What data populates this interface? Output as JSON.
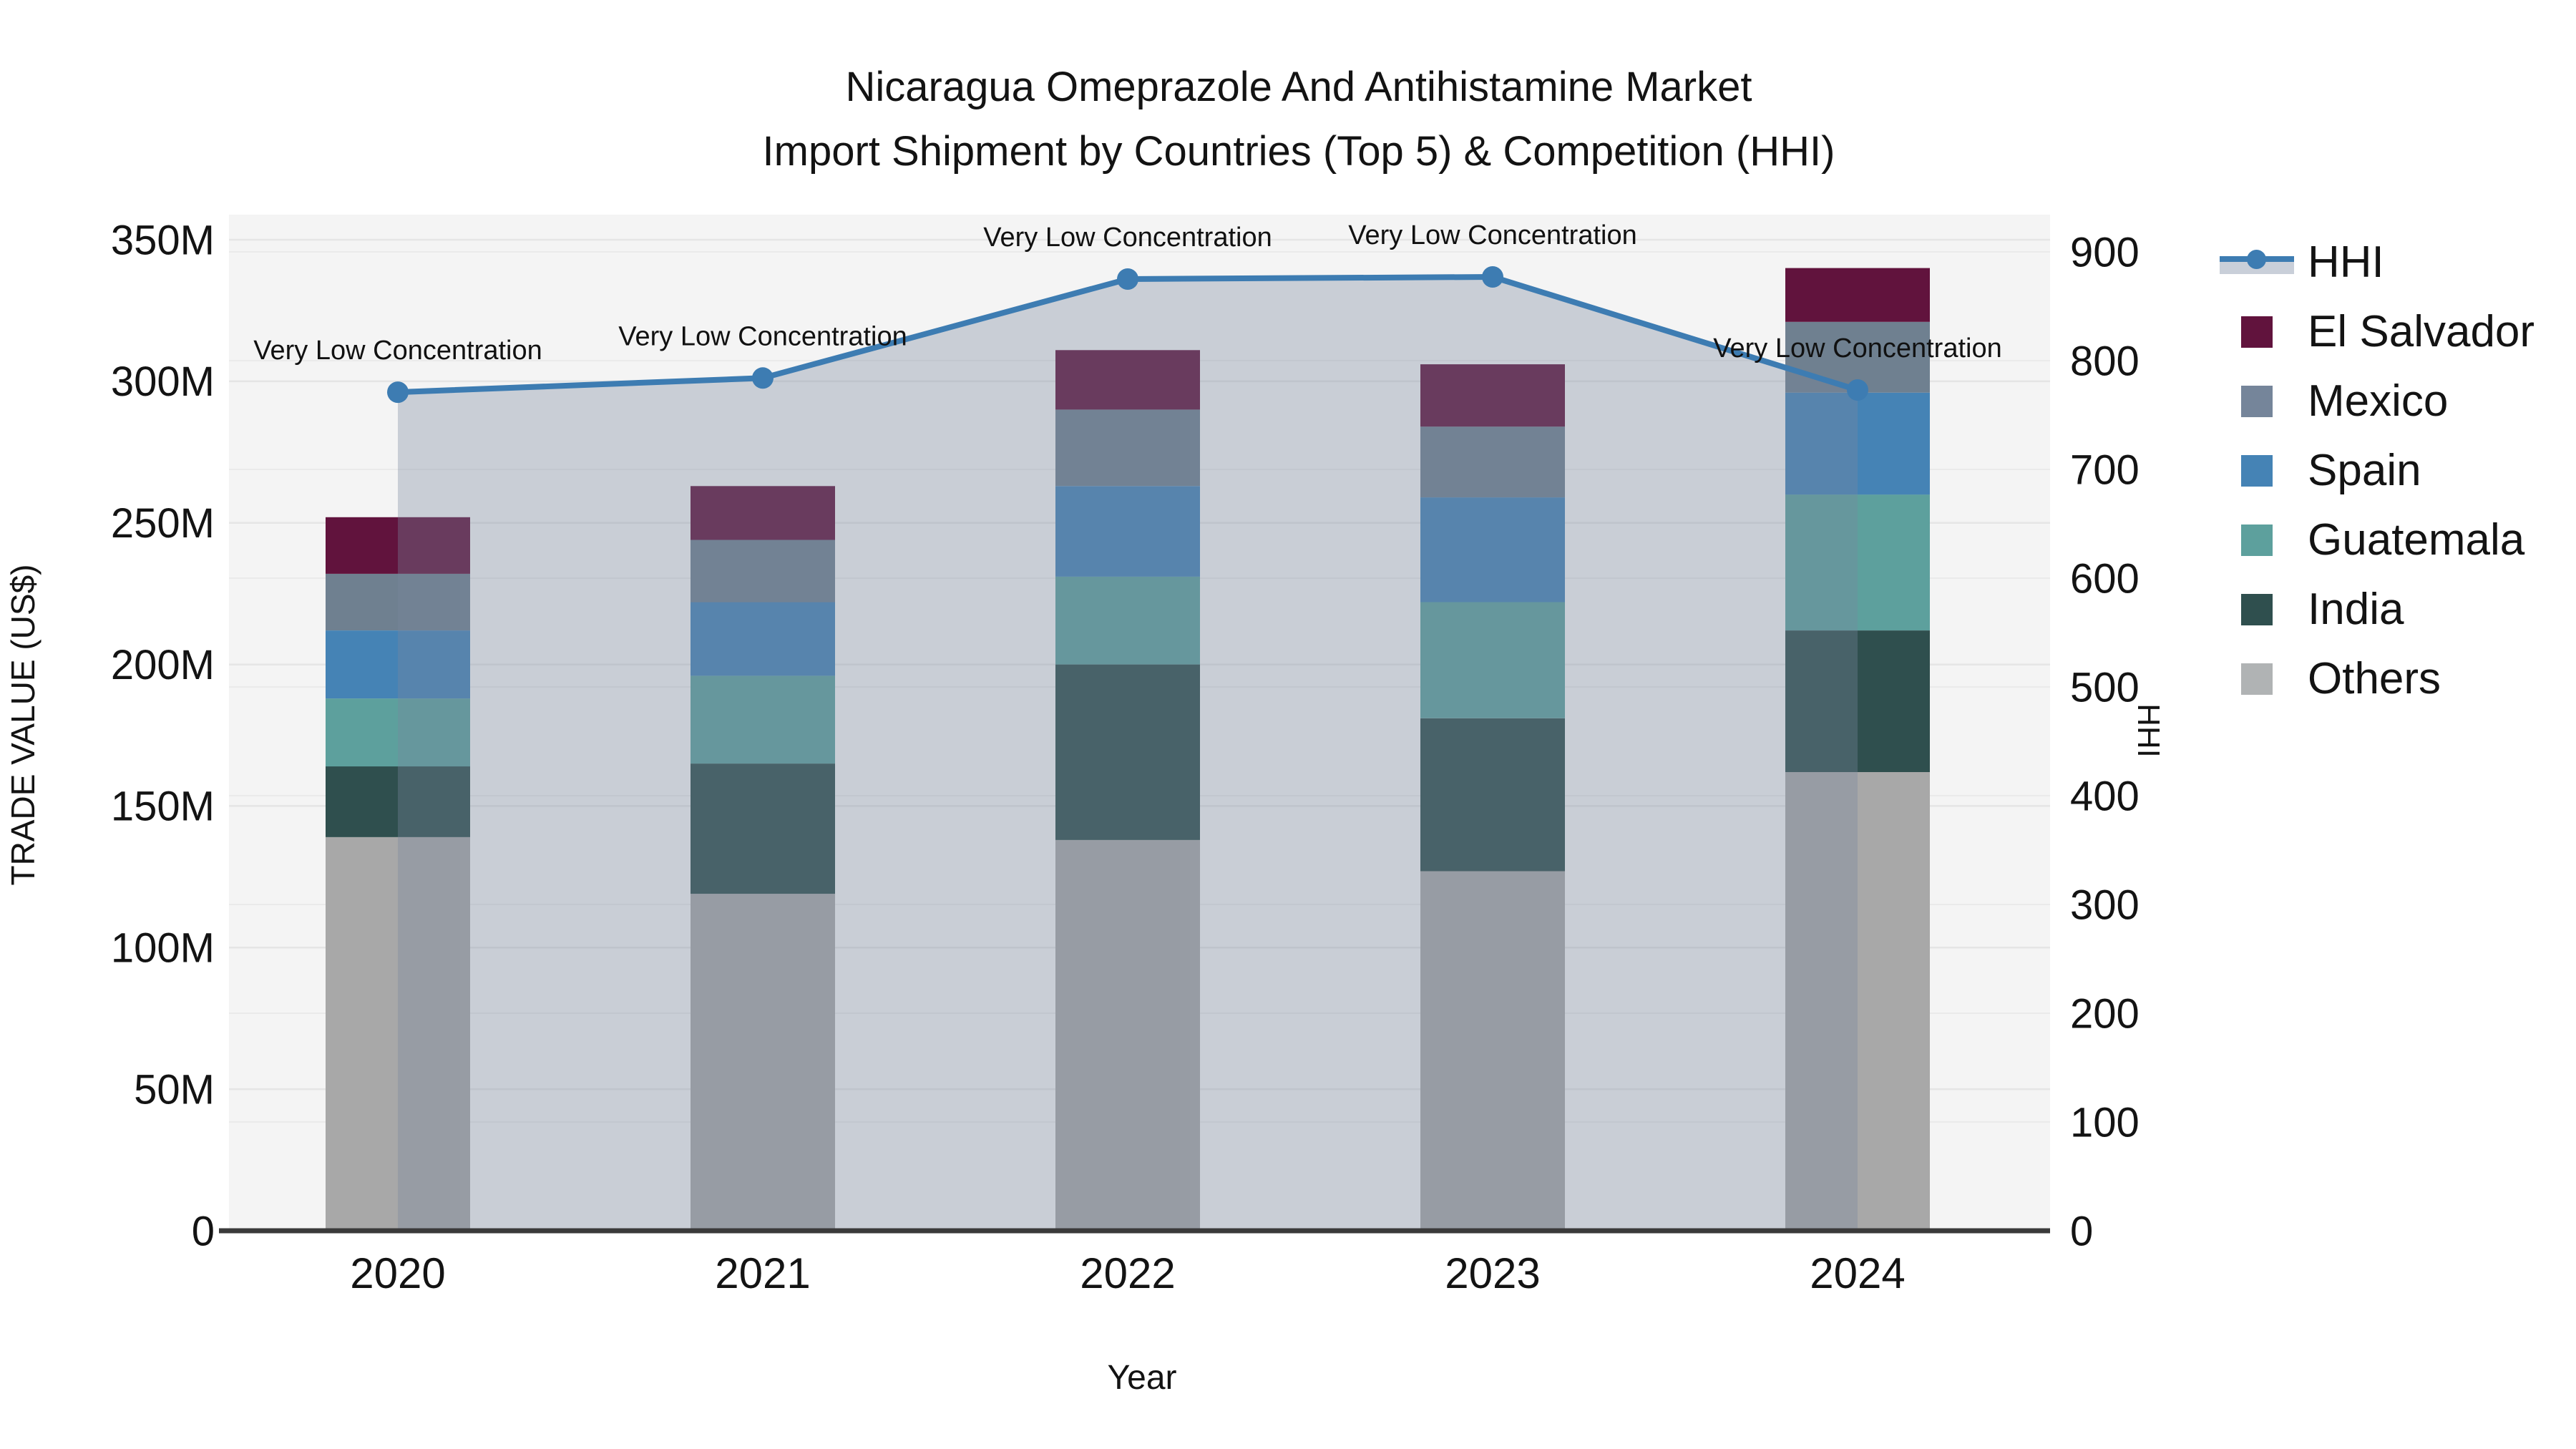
{
  "title": {
    "line1": "Nicaragua Omeprazole And Antihistamine Market",
    "line2": "Import Shipment by Countries (Top 5) & Competition (HHI)"
  },
  "axes": {
    "y_left": {
      "label": "TRADE VALUE (US$)",
      "ticks": [
        {
          "value": 0,
          "label": "0"
        },
        {
          "value": 50,
          "label": "50M"
        },
        {
          "value": 100,
          "label": "100M"
        },
        {
          "value": 150,
          "label": "150M"
        },
        {
          "value": 200,
          "label": "200M"
        },
        {
          "value": 250,
          "label": "250M"
        },
        {
          "value": 300,
          "label": "300M"
        },
        {
          "value": 350,
          "label": "350M"
        }
      ]
    },
    "y_right": {
      "label": "HHI",
      "ticks": [
        {
          "value": 0,
          "label": "0"
        },
        {
          "value": 100,
          "label": "100"
        },
        {
          "value": 200,
          "label": "200"
        },
        {
          "value": 300,
          "label": "300"
        },
        {
          "value": 400,
          "label": "400"
        },
        {
          "value": 500,
          "label": "500"
        },
        {
          "value": 600,
          "label": "600"
        },
        {
          "value": 700,
          "label": "700"
        },
        {
          "value": 800,
          "label": "800"
        },
        {
          "value": 900,
          "label": "900"
        }
      ]
    },
    "x": {
      "label": "Year"
    }
  },
  "chart_data": {
    "type": "stacked-bar+line",
    "categories": [
      "2020",
      "2021",
      "2022",
      "2023",
      "2024"
    ],
    "value_unit": "M US$",
    "ylim_left_millions": [
      0,
      350
    ],
    "ylim_right_hhi": [
      0,
      900
    ],
    "grid": true,
    "legend_position": "right",
    "series": [
      {
        "name": "Others",
        "color": "#a8a8a8",
        "values": [
          139,
          119,
          138,
          127,
          162
        ]
      },
      {
        "name": "India",
        "color": "#2f4f4e",
        "values": [
          25,
          46,
          62,
          54,
          50
        ]
      },
      {
        "name": "Guatemala",
        "color": "#5da09d",
        "values": [
          24,
          31,
          31,
          41,
          48
        ]
      },
      {
        "name": "Spain",
        "color": "#4583b5",
        "values": [
          24,
          26,
          32,
          37,
          36
        ]
      },
      {
        "name": "Mexico",
        "color": "#6f8090",
        "values": [
          20,
          22,
          27,
          25,
          25
        ]
      },
      {
        "name": "El Salvador",
        "color": "#61133d",
        "values": [
          20,
          19,
          21,
          22,
          19
        ]
      }
    ],
    "bar_totals_millions": [
      252,
      263,
      311,
      306,
      340
    ],
    "line": {
      "name": "HHI",
      "color": "#3d7cb2",
      "area_color": "rgba(120,134,157,0.35)",
      "values": [
        771,
        784,
        875,
        877,
        773
      ]
    },
    "annotation_label": "Very Low Concentration"
  },
  "legend": {
    "items": [
      {
        "label": "HHI",
        "type": "line"
      },
      {
        "label": "El Salvador",
        "type": "swatch",
        "color": "#61133d"
      },
      {
        "label": "Mexico",
        "type": "swatch",
        "color": "#75859a"
      },
      {
        "label": "Spain",
        "type": "swatch",
        "color": "#4583b5"
      },
      {
        "label": "Guatemala",
        "type": "swatch",
        "color": "#5da09d"
      },
      {
        "label": "India",
        "type": "swatch",
        "color": "#2f4f4e"
      },
      {
        "label": "Others",
        "type": "swatch",
        "color": "#b0b3b4"
      }
    ]
  }
}
